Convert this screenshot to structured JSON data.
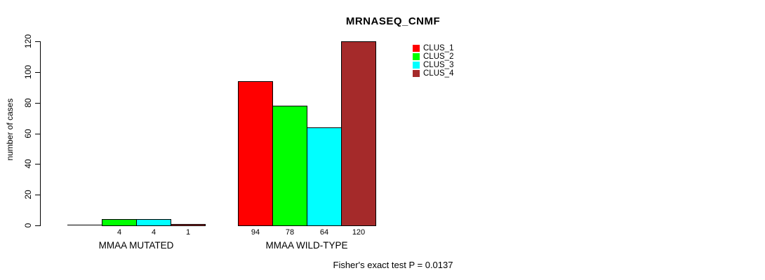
{
  "chart_data": {
    "type": "bar",
    "title": "MRNASEQ_CNMF",
    "ylabel": "number of cases",
    "xlabel": "",
    "ylim": [
      0,
      120
    ],
    "yticks": [
      0,
      20,
      40,
      60,
      80,
      100,
      120
    ],
    "grid": false,
    "legend_position": "top-center-right",
    "categories": [
      "MMAA MUTATED",
      "MMAA WILD-TYPE"
    ],
    "series": [
      {
        "name": "CLUS_1",
        "color": "#FF0000",
        "values": [
          0,
          94
        ]
      },
      {
        "name": "CLUS_2",
        "color": "#00FF00",
        "values": [
          4,
          78
        ]
      },
      {
        "name": "CLUS_3",
        "color": "#00FFFF",
        "values": [
          4,
          64
        ]
      },
      {
        "name": "CLUS_4",
        "color": "#A52A2A",
        "values": [
          1,
          120
        ]
      }
    ],
    "bar_value_labels": [
      [
        "",
        "4",
        "4",
        "1"
      ],
      [
        "94",
        "78",
        "64",
        "120"
      ]
    ],
    "footnote": "Fisher's exact test P = 0.0137"
  }
}
